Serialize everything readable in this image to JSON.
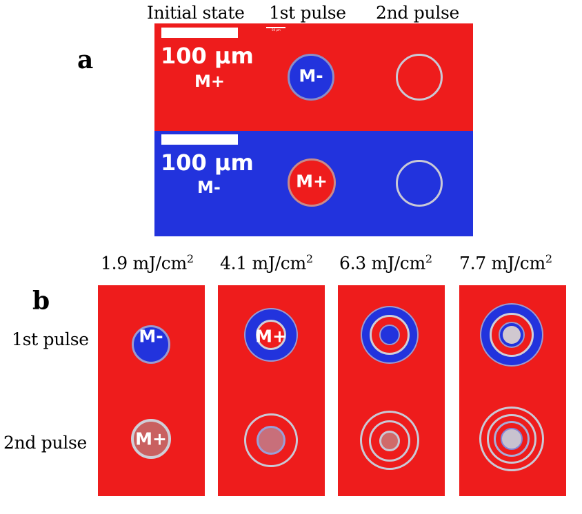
{
  "panel_a": {
    "letter": "a",
    "column_headers": [
      "Initial state",
      "1st pulse",
      "2nd pulse"
    ],
    "top_row": {
      "scale_label": "100 μm",
      "state_label": "M+",
      "pulse1_label": "M-"
    },
    "bottom_row": {
      "scale_label": "100 μm",
      "state_label": "M-",
      "pulse1_label": "M+"
    },
    "tiny_scale_label": "50 μm"
  },
  "panel_b": {
    "letter": "b",
    "fluences": [
      {
        "value": "1.9 mJ/cm",
        "sup": "2"
      },
      {
        "value": "4.1 mJ/cm",
        "sup": "2"
      },
      {
        "value": "6.3 mJ/cm",
        "sup": "2"
      },
      {
        "value": "7.7 mJ/cm",
        "sup": "2"
      }
    ],
    "row_headers": [
      "1st pulse",
      "2nd pulse"
    ],
    "labels": {
      "c1_pulse1": "M-",
      "c2_pulse1": "M+",
      "c1_pulse2": "M+"
    }
  },
  "colors": {
    "red": "#ee1c1c",
    "blue": "#2233dd",
    "ring": "#c9c9d6",
    "white": "#ffffff"
  }
}
